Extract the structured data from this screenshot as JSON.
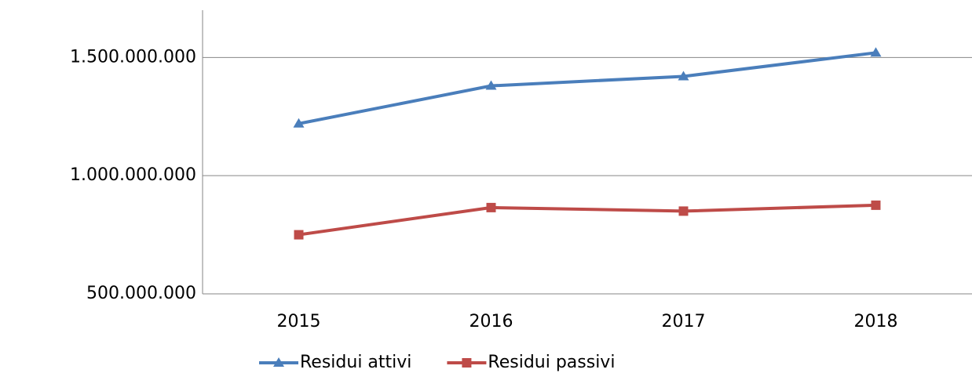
{
  "chart_data": {
    "type": "line",
    "categories": [
      "2015",
      "2016",
      "2017",
      "2018"
    ],
    "series": [
      {
        "name": "Residui attivi",
        "color": "#4a7ebb",
        "marker": "triangle",
        "values": [
          1220000000,
          1380000000,
          1420000000,
          1520000000
        ]
      },
      {
        "name": "Residui passivi",
        "color": "#be4b48",
        "marker": "square",
        "values": [
          750000000,
          865000000,
          850000000,
          875000000
        ]
      }
    ],
    "ylim": [
      500000000,
      1700000000
    ],
    "yticks": [
      {
        "value": 500000000,
        "label": "500.000.000"
      },
      {
        "value": 1000000000,
        "label": "1.000.000.000"
      },
      {
        "value": 1500000000,
        "label": "1.500.000.000"
      }
    ],
    "grid": true,
    "legend": "bottom"
  }
}
